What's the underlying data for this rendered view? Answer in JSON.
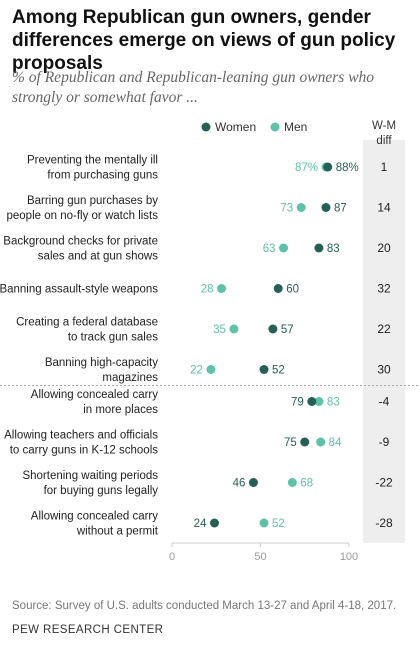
{
  "title": "Among Republican gun owners, gender differences emerge on views of gun policy proposals",
  "subtitle": "% of Republican and Republican-leaning gun owners who strongly or somewhat favor ...",
  "source": "Source: Survey of U.S. adults conducted March 13-27 and April 4-18, 2017.",
  "credit": "PEW RESEARCH CENTER",
  "colors": {
    "women": "#255f55",
    "men": "#5fc1a9",
    "diff_bg": "#eeeeee",
    "separator": "#aaaaaa"
  },
  "chart_data": {
    "type": "scatter",
    "xlim": [
      0,
      100
    ],
    "xticks": [
      "0",
      "50",
      "100"
    ],
    "legend": {
      "women": "Women",
      "men": "Men",
      "placement": "top"
    },
    "diff_header": [
      "W-M",
      "diff"
    ],
    "grid": false,
    "groups": [
      [
        {
          "label": [
            "Preventing the mentally ill",
            "from purchasing guns"
          ],
          "women": 88,
          "men": 87,
          "women_label": "88%",
          "men_label": "87%",
          "diff": "1"
        },
        {
          "label": [
            "Barring gun purchases by",
            "people on no-fly or watch lists"
          ],
          "women": 87,
          "men": 73,
          "women_label": "87",
          "men_label": "73",
          "diff": "14"
        },
        {
          "label": [
            "Background checks for private",
            "sales and at gun shows"
          ],
          "women": 83,
          "men": 63,
          "women_label": "83",
          "men_label": "63",
          "diff": "20"
        },
        {
          "label": [
            "Banning assault-style weapons"
          ],
          "women": 60,
          "men": 28,
          "women_label": "60",
          "men_label": "28",
          "diff": "32"
        },
        {
          "label": [
            "Creating a federal database",
            "to track gun sales"
          ],
          "women": 57,
          "men": 35,
          "women_label": "57",
          "men_label": "35",
          "diff": "22"
        },
        {
          "label": [
            "Banning high-capacity",
            "magazines"
          ],
          "women": 52,
          "men": 22,
          "women_label": "52",
          "men_label": "22",
          "diff": "30"
        }
      ],
      [
        {
          "label": [
            "Allowing concealed carry",
            "in more places"
          ],
          "women": 79,
          "men": 83,
          "women_label": "79",
          "men_label": "83",
          "diff": "-4"
        },
        {
          "label": [
            "Allowing teachers and officials",
            "to carry guns in K-12 schools"
          ],
          "women": 75,
          "men": 84,
          "women_label": "75",
          "men_label": "84",
          "diff": "-9"
        },
        {
          "label": [
            "Shortening waiting periods",
            "for buying guns legally"
          ],
          "women": 46,
          "men": 68,
          "women_label": "46",
          "men_label": "68",
          "diff": "-22"
        },
        {
          "label": [
            "Allowing concealed carry",
            "without a permit"
          ],
          "women": 24,
          "men": 52,
          "women_label": "24",
          "men_label": "52",
          "diff": "-28"
        }
      ]
    ]
  }
}
